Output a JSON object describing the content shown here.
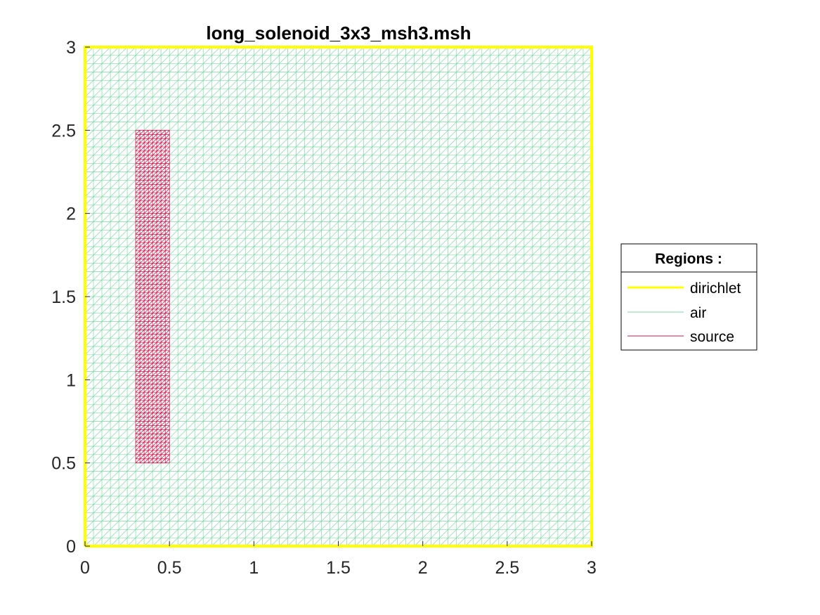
{
  "chart_data": {
    "type": "mesh",
    "title": "long_solenoid_3x3_msh3.msh",
    "xlabel": "",
    "ylabel": "",
    "xlim": [
      0,
      3
    ],
    "ylim": [
      0,
      3
    ],
    "xticks": [
      "0",
      "0.5",
      "1",
      "1.5",
      "2",
      "2.5",
      "3"
    ],
    "yticks": [
      "0",
      "0.5",
      "1",
      "1.5",
      "2",
      "2.5",
      "3"
    ],
    "legend_placement": "outside-right",
    "legend": {
      "title": "Regions :",
      "entries": [
        {
          "name": "dirichlet",
          "color": "#ffff00"
        },
        {
          "name": "air",
          "color": "#7fd9a6"
        },
        {
          "name": "source",
          "color": "#cc1a4d"
        }
      ]
    },
    "regions": {
      "dirichlet": {
        "x": [
          0,
          3,
          3,
          0,
          0
        ],
        "y": [
          0,
          0,
          3,
          3,
          0
        ],
        "color": "#ffff00"
      },
      "air": {
        "xlim": [
          0,
          3
        ],
        "ylim": [
          0,
          3
        ],
        "mesh_step": 0.05,
        "color": "#7fd9a6"
      },
      "source": {
        "xlim": [
          0.3,
          0.5
        ],
        "ylim": [
          0.5,
          2.5
        ],
        "mesh_step": 0.025,
        "color": "#cc1a4d"
      }
    }
  }
}
